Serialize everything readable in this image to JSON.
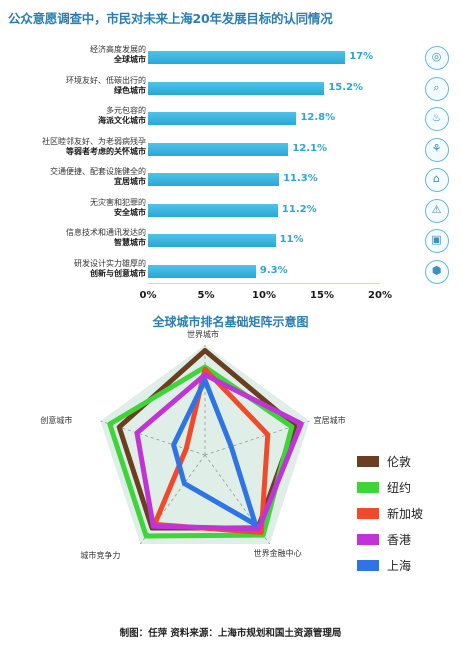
{
  "chart_data": [
    {
      "type": "bar",
      "title": "公众意愿调查中，市民对未来上海20年发展目标的认同情况",
      "categories": [
        {
          "line1": "经济高度发展的",
          "line2": "全球城市"
        },
        {
          "line1": "环境友好、低碳出行的",
          "line2": "绿色城市"
        },
        {
          "line1": "多元包容的",
          "line2": "海派文化城市"
        },
        {
          "line1": "社区睦邻友好、为老弱病残孕",
          "line2": "等弱者考虑的关怀城市"
        },
        {
          "line1": "交通便捷、配套设施健全的",
          "line2": "宜居城市"
        },
        {
          "line1": "无灾害和犯罪的",
          "line2": "安全城市"
        },
        {
          "line1": "信息技术和通讯发达的",
          "line2": "智慧城市"
        },
        {
          "line1": "研发设计实力雄厚的",
          "line2": "创新与创意城市"
        }
      ],
      "values": [
        17,
        15.2,
        12.8,
        12.1,
        11.3,
        11.2,
        11,
        9.3
      ],
      "value_labels": [
        "17%",
        "15.2%",
        "12.8%",
        "12.1%",
        "11.3%",
        "11.2%",
        "11%",
        "9.3%"
      ],
      "xlim": [
        0,
        20
      ],
      "xticks": [
        "0%",
        "5%",
        "10%",
        "15%",
        "20%"
      ],
      "bar_color": "#2aa7d6"
    },
    {
      "type": "radar",
      "title": "全球城市排名基础矩阵示意图",
      "axes": [
        "世界城市",
        "宜居城市",
        "世界金融中心",
        "城市竞争力",
        "创意城市"
      ],
      "series": [
        {
          "name": "伦敦",
          "color": "#6b3e22",
          "values": [
            0.95,
            0.86,
            0.82,
            0.82,
            0.82
          ]
        },
        {
          "name": "纽约",
          "color": "#3fd43a",
          "values": [
            0.8,
            0.83,
            0.9,
            0.91,
            0.91
          ]
        },
        {
          "name": "新加坡",
          "color": "#f04a2a",
          "values": [
            0.78,
            0.6,
            0.87,
            0.78,
            0.18
          ]
        },
        {
          "name": "香港",
          "color": "#c033d6",
          "values": [
            0.73,
            0.92,
            0.83,
            0.8,
            0.65
          ]
        },
        {
          "name": "上海",
          "color": "#2f74e6",
          "values": [
            0.68,
            0.25,
            0.78,
            0.32,
            0.3
          ]
        }
      ]
    }
  ],
  "credit": "制图：任萍 资料来源：上海市规划和国土资源管理局"
}
